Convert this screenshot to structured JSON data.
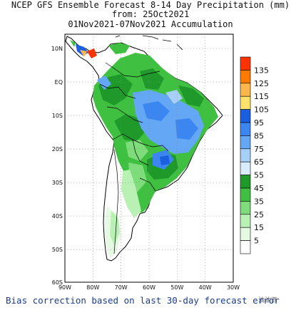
{
  "title": {
    "line1": "NCEP GFS Ensemble Forecast 8-14 Day Precipitation (mm)",
    "line2": "from: 25Oct2021",
    "line3": "01Nov2021-07Nov2021 Accumulation"
  },
  "map": {
    "lat_labels": [
      "10N",
      "EQ",
      "10S",
      "20S",
      "30S",
      "40S",
      "50S",
      "60S"
    ],
    "lon_labels": [
      "90W",
      "80W",
      "70W",
      "60W",
      "50W",
      "40W",
      "30W"
    ],
    "land_color": "#ffffff",
    "coast_color": "#000000"
  },
  "colorbar": {
    "labels": [
      "135",
      "125",
      "115",
      "105",
      "95",
      "85",
      "75",
      "65",
      "55",
      "45",
      "35",
      "25",
      "15",
      "5"
    ],
    "colors": [
      "#ff3300",
      "#ff7a00",
      "#ffb64a",
      "#ffe36b",
      "#1a5fe0",
      "#3b86f0",
      "#64a8f5",
      "#a6d0f7",
      "#d8ecfb",
      "#1f9a2a",
      "#3fc040",
      "#7fdc7a",
      "#b9f0b4",
      "#e6fae3",
      "#ffffff"
    ]
  },
  "footer": {
    "bias_note": "Bias correction based on last 30-day forecast error",
    "watermark": "油油西"
  }
}
